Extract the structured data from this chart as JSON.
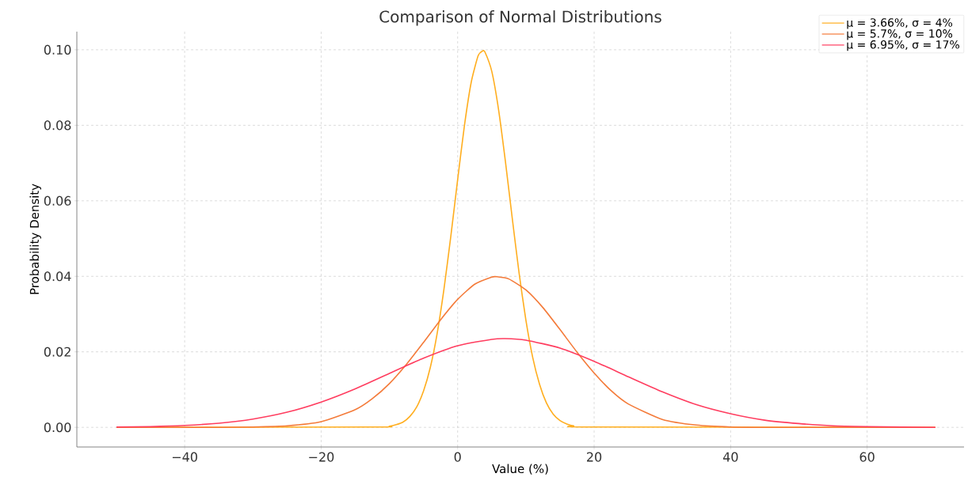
{
  "chart_data": {
    "type": "line",
    "title": "Comparison of Normal Distributions",
    "xlabel": "Value (%)",
    "ylabel": "Probability Density",
    "xlim": [
      -55.8,
      74.2
    ],
    "ylim": [
      -0.0052,
      0.1048
    ],
    "xticks": [
      {
        "value": -40,
        "label": "−40"
      },
      {
        "value": -20,
        "label": "−20"
      },
      0,
      20,
      40,
      60
    ],
    "yticks": [
      {
        "value": 0,
        "label": "0.00"
      },
      {
        "value": 0.02,
        "label": "0.02"
      },
      {
        "value": 0.04,
        "label": "0.04"
      },
      {
        "value": 0.06,
        "label": "0.06"
      },
      {
        "value": 0.08,
        "label": "0.08"
      },
      {
        "value": 0.1,
        "label": "0.10"
      }
    ],
    "grid": true,
    "legend": "top right",
    "line_style": "solid",
    "marker": "none",
    "series": [
      {
        "name": "μ = 3.66%, σ = 4%",
        "color": "#ffae1f",
        "x": [
          -50,
          -12,
          -10,
          -9,
          -8,
          -7,
          -6,
          -5,
          -4,
          -3,
          -2,
          -1,
          0,
          1,
          2,
          3,
          3.66,
          4,
          5,
          6,
          7,
          8,
          9,
          10,
          11,
          12,
          13,
          14,
          15,
          16,
          17,
          19,
          70
        ],
        "values": [
          0,
          0.0001,
          0.0003,
          0.0007,
          0.0014,
          0.0029,
          0.0054,
          0.0096,
          0.0159,
          0.0249,
          0.0367,
          0.0506,
          0.0656,
          0.08,
          0.0915,
          0.0984,
          0.0997,
          0.0994,
          0.0943,
          0.0841,
          0.0704,
          0.0554,
          0.0409,
          0.0284,
          0.0185,
          0.0114,
          0.0065,
          0.0035,
          0.0018,
          0.0009,
          0.0004,
          0.0001,
          0
        ]
      },
      {
        "name": "μ = 5.7%, σ = 10%",
        "color": "#f47b3a",
        "x": [
          -50,
          -45,
          -40,
          -35,
          -30,
          -25,
          -20,
          -15,
          -12.5,
          -10,
          -7.5,
          -5,
          -2.5,
          0,
          2.5,
          5,
          5.7,
          7.5,
          10,
          12.5,
          15,
          17.5,
          20,
          22.5,
          25,
          30,
          35,
          40,
          45,
          50,
          55,
          60,
          65,
          70
        ],
        "values": [
          0,
          0,
          0,
          0,
          0.0001,
          0.0004,
          0.0015,
          0.0047,
          0.0076,
          0.0116,
          0.0167,
          0.0225,
          0.0285,
          0.0339,
          0.0379,
          0.0398,
          0.0399,
          0.0393,
          0.0364,
          0.0317,
          0.0259,
          0.0199,
          0.0144,
          0.0097,
          0.0062,
          0.0021,
          0.0006,
          0.0001,
          0,
          0,
          0,
          0,
          0,
          0
        ]
      },
      {
        "name": "μ = 6.95%, σ = 17%",
        "color": "#ff3d5f",
        "x": [
          -50,
          -45,
          -40,
          -35,
          -30,
          -25,
          -20,
          -15,
          -10,
          -5,
          0,
          5,
          6.95,
          10,
          15,
          20,
          25,
          30,
          35,
          40,
          45,
          50,
          55,
          60,
          65,
          70
        ],
        "values": [
          0.0001,
          0.0002,
          0.0005,
          0.0011,
          0.0022,
          0.004,
          0.0067,
          0.0102,
          0.0143,
          0.0183,
          0.0216,
          0.0233,
          0.0235,
          0.0231,
          0.021,
          0.0175,
          0.0134,
          0.0094,
          0.006,
          0.0036,
          0.0019,
          0.001,
          0.0004,
          0.0002,
          0.0001,
          0
        ]
      }
    ]
  }
}
